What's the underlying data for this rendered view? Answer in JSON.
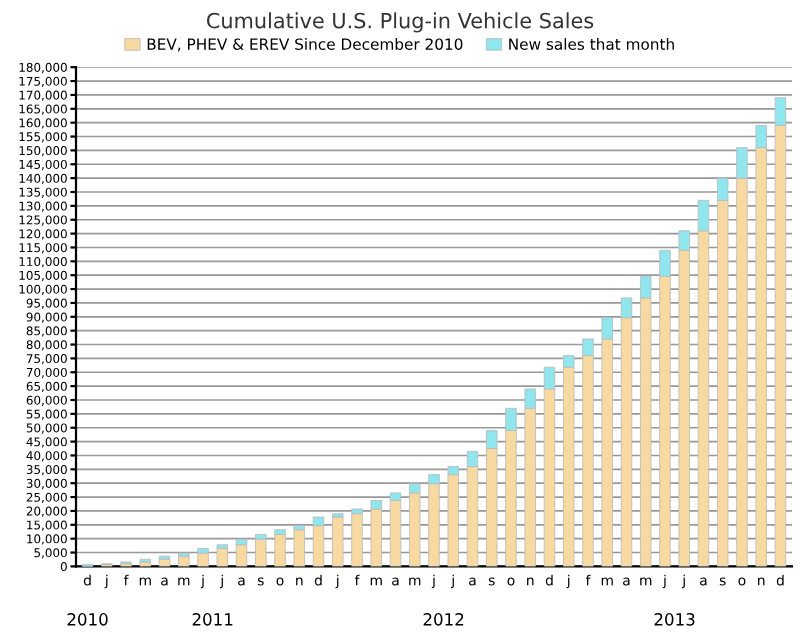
{
  "chart_data": {
    "type": "bar",
    "stacked": true,
    "title": "Cumulative U.S. Plug-in Vehicle Sales",
    "categories": [
      "d",
      "j",
      "f",
      "m",
      "a",
      "m",
      "j",
      "j",
      "a",
      "s",
      "o",
      "n",
      "d",
      "j",
      "f",
      "m",
      "a",
      "m",
      "j",
      "j",
      "a",
      "s",
      "o",
      "n",
      "d",
      "j",
      "f",
      "m",
      "a",
      "m",
      "j",
      "j",
      "a",
      "s",
      "o",
      "n",
      "d"
    ],
    "series": [
      {
        "name": "BEV, PHEV & EREV Since December 2010",
        "color": "#f8d9a0",
        "values": [
          0,
          700,
          1000,
          1600,
          2600,
          3700,
          4800,
          6500,
          7800,
          9800,
          11500,
          13200,
          14700,
          17800,
          19000,
          20700,
          23800,
          26500,
          29800,
          33100,
          36000,
          42500,
          49000,
          57000,
          64000,
          71800,
          76000,
          82000,
          89700,
          96800,
          104600,
          114000,
          121000,
          132000,
          140000,
          151000,
          159000
        ]
      },
      {
        "name": "New sales that month",
        "color": "#8ee6ee",
        "values": [
          700,
          300,
          600,
          1000,
          1100,
          1100,
          1700,
          1300,
          2000,
          1700,
          1700,
          1500,
          3100,
          1200,
          1700,
          3100,
          2700,
          3300,
          3300,
          2900,
          5500,
          6500,
          8000,
          7000,
          7800,
          4200,
          6000,
          7700,
          7100,
          7800,
          9400,
          7000,
          11000,
          8000,
          11000,
          8000,
          10000
        ]
      }
    ],
    "ylim": [
      0,
      180000
    ],
    "yticks": [
      0,
      {
        "value": 5000,
        "label": "5,000"
      },
      {
        "value": 10000,
        "label": "10,000"
      },
      {
        "value": 15000,
        "label": "15,000"
      },
      {
        "value": 20000,
        "label": "20,000"
      },
      {
        "value": 25000,
        "label": "25,000"
      },
      {
        "value": 30000,
        "label": "30,000"
      },
      {
        "value": 35000,
        "label": "35,000"
      },
      {
        "value": 40000,
        "label": "40,000"
      },
      {
        "value": 45000,
        "label": "45,000"
      },
      {
        "value": 50000,
        "label": "50,000"
      },
      {
        "value": 55000,
        "label": "55,000"
      },
      {
        "value": 60000,
        "label": "60,000"
      },
      {
        "value": 65000,
        "label": "65,000"
      },
      {
        "value": 70000,
        "label": "70,000"
      },
      {
        "value": 75000,
        "label": "75,000"
      },
      {
        "value": 80000,
        "label": "80,000"
      },
      {
        "value": 85000,
        "label": "85,000"
      },
      {
        "value": 90000,
        "label": "90,000"
      },
      {
        "value": 95000,
        "label": "95,000"
      },
      {
        "value": 100000,
        "label": "100,000"
      },
      {
        "value": 105000,
        "label": "105,000"
      },
      {
        "value": 110000,
        "label": "110,000"
      },
      {
        "value": 115000,
        "label": "115,000"
      },
      {
        "value": 120000,
        "label": "120,000"
      },
      {
        "value": 125000,
        "label": "125,000"
      },
      {
        "value": 130000,
        "label": "130,000"
      },
      {
        "value": 135000,
        "label": "135,000"
      },
      {
        "value": 140000,
        "label": "140,000"
      },
      {
        "value": 145000,
        "label": "145,000"
      },
      {
        "value": 150000,
        "label": "150,000"
      },
      {
        "value": 155000,
        "label": "155,000"
      },
      {
        "value": 160000,
        "label": "160,000"
      },
      {
        "value": 165000,
        "label": "165,000"
      },
      {
        "value": 170000,
        "label": "170,000"
      },
      {
        "value": 175000,
        "label": "175,000"
      },
      {
        "value": 180000,
        "label": "180,000"
      }
    ],
    "annotations": [
      "2010",
      "2011",
      "2012",
      "2013"
    ],
    "grid": "y",
    "legend": "top"
  }
}
